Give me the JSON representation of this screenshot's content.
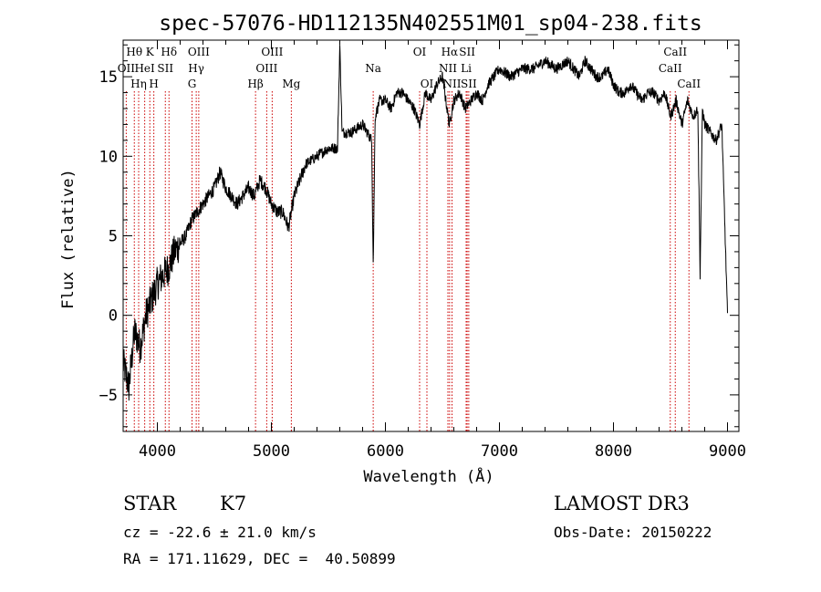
{
  "chart_data": {
    "type": "line",
    "title": "spec-57076-HD112135N402551M01_sp04-238.fits",
    "xlabel": "Wavelength (Å)",
    "ylabel": "Flux (relative)",
    "xlim": [
      3700,
      9100
    ],
    "ylim": [
      -7.3,
      17.3
    ],
    "xticks": [
      4000,
      5000,
      6000,
      7000,
      8000,
      9000
    ],
    "yticks": [
      -5,
      0,
      5,
      10,
      15
    ],
    "series": [
      {
        "name": "spectrum",
        "x": [
          3700,
          3750,
          3800,
          3850,
          3900,
          3950,
          4000,
          4050,
          4100,
          4150,
          4200,
          4250,
          4300,
          4350,
          4400,
          4450,
          4500,
          4550,
          4600,
          4650,
          4700,
          4750,
          4800,
          4850,
          4900,
          4950,
          5000,
          5050,
          5100,
          5150,
          5200,
          5250,
          5300,
          5400,
          5500,
          5580,
          5600,
          5620,
          5700,
          5800,
          5880,
          5893,
          5910,
          5950,
          6000,
          6050,
          6100,
          6150,
          6200,
          6250,
          6300,
          6350,
          6400,
          6450,
          6500,
          6560,
          6600,
          6650,
          6700,
          6750,
          6800,
          6850,
          6900,
          6950,
          7000,
          7100,
          7200,
          7300,
          7400,
          7500,
          7600,
          7650,
          7700,
          7750,
          7800,
          7850,
          7900,
          7950,
          8000,
          8050,
          8100,
          8150,
          8200,
          8250,
          8300,
          8350,
          8400,
          8450,
          8500,
          8550,
          8600,
          8650,
          8700,
          8740,
          8760,
          8780,
          8800,
          8850,
          8900,
          8950,
          9000
        ],
        "y": [
          -3.0,
          -4.5,
          -1.0,
          -2.0,
          0.0,
          1.0,
          2.0,
          2.5,
          3.0,
          4.0,
          4.5,
          5.0,
          6.0,
          6.5,
          7.0,
          7.5,
          8.0,
          9.0,
          8.0,
          7.5,
          7.0,
          7.5,
          8.0,
          7.5,
          8.5,
          8.0,
          7.0,
          6.5,
          6.5,
          5.5,
          7.5,
          8.5,
          9.5,
          10.0,
          10.5,
          10.5,
          17.0,
          11.5,
          11.5,
          12.0,
          11.0,
          3.0,
          12.5,
          13.5,
          13.5,
          13.0,
          14.0,
          14.0,
          13.5,
          13.0,
          12.0,
          14.0,
          13.5,
          14.5,
          15.0,
          12.0,
          13.5,
          14.0,
          13.0,
          13.5,
          14.0,
          13.5,
          14.5,
          15.0,
          15.5,
          15.0,
          15.5,
          15.5,
          16.0,
          15.5,
          16.0,
          15.5,
          15.0,
          16.0,
          15.5,
          15.0,
          15.0,
          15.5,
          14.5,
          14.0,
          14.0,
          14.5,
          14.0,
          13.5,
          14.0,
          14.0,
          13.5,
          14.0,
          12.5,
          13.5,
          12.0,
          13.5,
          12.5,
          13.0,
          2.5,
          13.0,
          12.0,
          11.5,
          11.0,
          12.0,
          0.0
        ]
      }
    ],
    "spectral_lines": [
      {
        "label": "Hθ",
        "wavelength": 3798,
        "row": 0
      },
      {
        "label": "OII",
        "wavelength": 3727,
        "row": 1
      },
      {
        "label": "Hη",
        "wavelength": 3836,
        "row": 2
      },
      {
        "label": "K",
        "wavelength": 3934,
        "row": 0
      },
      {
        "label": "HeI",
        "wavelength": 3889,
        "row": 1
      },
      {
        "label": "H",
        "wavelength": 3969,
        "row": 2
      },
      {
        "label": "SII",
        "wavelength": 4070,
        "row": 1
      },
      {
        "label": "Hδ",
        "wavelength": 4102,
        "row": 0
      },
      {
        "label": "OIII",
        "wavelength": 4363,
        "row": 0
      },
      {
        "label": "Hγ",
        "wavelength": 4341,
        "row": 1
      },
      {
        "label": "G",
        "wavelength": 4304,
        "row": 2
      },
      {
        "label": "Hβ",
        "wavelength": 4861,
        "row": 2
      },
      {
        "label": "OIII",
        "wavelength": 5007,
        "row": 0
      },
      {
        "label": "OIII",
        "wavelength": 4959,
        "row": 1
      },
      {
        "label": "Mg",
        "wavelength": 5175,
        "row": 2
      },
      {
        "label": "Na",
        "wavelength": 5893,
        "row": 1
      },
      {
        "label": "OI",
        "wavelength": 6300,
        "row": 0
      },
      {
        "label": "OI",
        "wavelength": 6364,
        "row": 2
      },
      {
        "label": "Hα",
        "wavelength": 6563,
        "row": 0
      },
      {
        "label": "NII",
        "wavelength": 6548,
        "row": 1
      },
      {
        "label": "NII",
        "wavelength": 6584,
        "row": 2
      },
      {
        "label": "SII",
        "wavelength": 6717,
        "row": 0
      },
      {
        "label": "Li",
        "wavelength": 6708,
        "row": 1
      },
      {
        "label": "SII",
        "wavelength": 6731,
        "row": 2
      },
      {
        "label": "CaII",
        "wavelength": 8542,
        "row": 0
      },
      {
        "label": "CaII",
        "wavelength": 8498,
        "row": 1
      },
      {
        "label": "CaII",
        "wavelength": 8662,
        "row": 2
      }
    ],
    "colors": {
      "spectrum": "#000000",
      "lines": "#cc0000"
    }
  },
  "info": {
    "class_label": "STAR",
    "subclass": "K7",
    "cz_text": "cz = -22.6 ± 21.0 km/s",
    "coords_text": "RA = 171.11629, DEC =  40.50899",
    "survey": "LAMOST DR3",
    "obs_date_text": "Obs-Date: 20150222"
  }
}
